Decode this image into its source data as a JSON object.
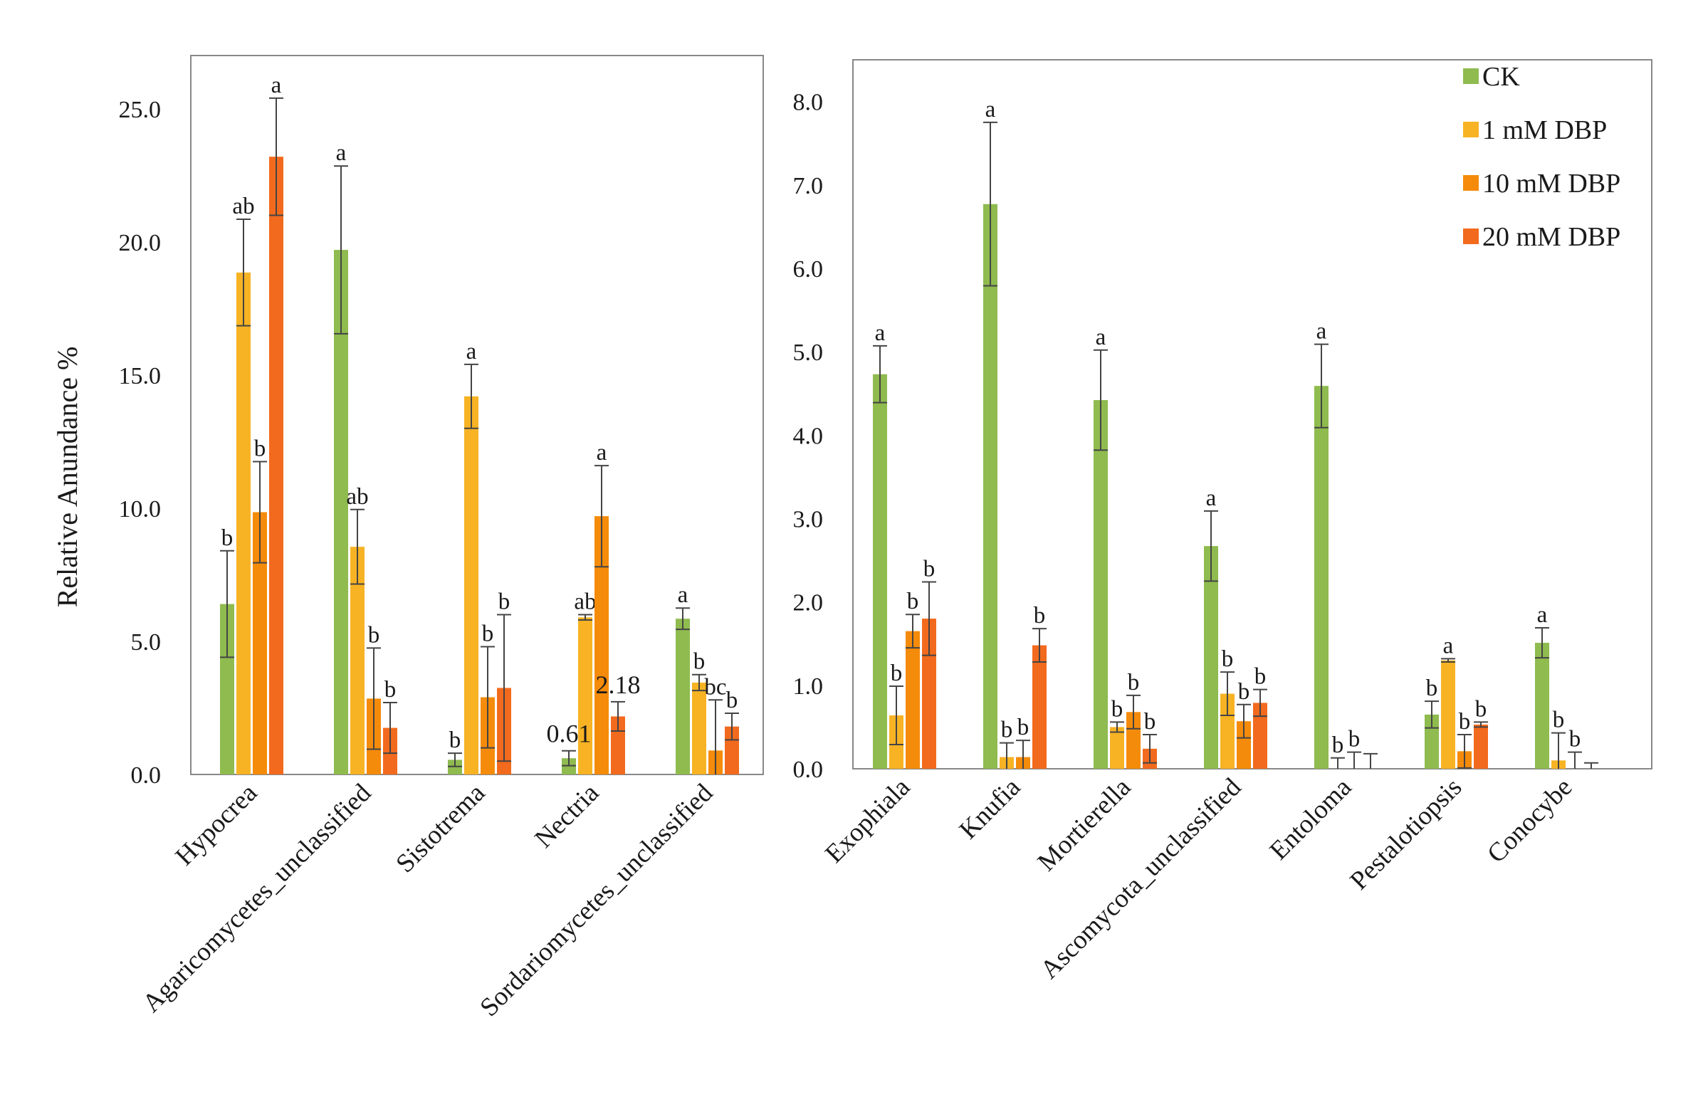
{
  "chart_data": [
    {
      "type": "bar",
      "ylabel": "Relative Anundance %",
      "ylim": [
        0,
        27
      ],
      "yticks": [
        "0.0",
        "5.0",
        "10.0",
        "15.0",
        "20.0",
        "25.0"
      ],
      "categories": [
        "Hypocrea",
        "Agaricomycetes_unclassified",
        "Sistotrema",
        "Nectria",
        "Sordariomycetes_unclassified"
      ],
      "series": [
        {
          "name": "CK",
          "values": [
            6.4,
            19.7,
            0.55,
            0.61,
            5.85
          ],
          "errors": [
            2.0,
            3.15,
            0.25,
            0.28,
            0.4
          ],
          "letters": [
            "b",
            "a",
            "b",
            "",
            "a"
          ]
        },
        {
          "name": "1 mM DBP",
          "values": [
            18.85,
            8.55,
            14.2,
            5.9,
            3.45
          ],
          "errors": [
            2.0,
            1.4,
            1.2,
            0.1,
            0.3
          ],
          "letters": [
            "ab",
            "ab",
            "a",
            "ab",
            "b"
          ]
        },
        {
          "name": "10 mM DBP",
          "values": [
            9.85,
            2.85,
            2.9,
            9.7,
            0.9
          ],
          "errors": [
            1.9,
            1.9,
            1.9,
            1.9,
            1.9
          ],
          "letters": [
            "b",
            "b",
            "b",
            "a",
            "bc"
          ]
        },
        {
          "name": "20 mM DBP",
          "values": [
            23.2,
            1.75,
            3.25,
            2.18,
            1.8
          ],
          "errors": [
            2.2,
            0.95,
            2.75,
            0.55,
            0.5
          ],
          "letters": [
            "a",
            "b",
            "b",
            "",
            "b"
          ]
        }
      ],
      "data_labels": [
        {
          "category": "Nectria",
          "series": "CK",
          "text": "0.61"
        },
        {
          "category": "Nectria",
          "series": "20 mM DBP",
          "text": "2.18"
        }
      ]
    },
    {
      "type": "bar",
      "ylim": [
        0,
        8.5
      ],
      "yticks": [
        "0.0",
        "1.0",
        "2.0",
        "3.0",
        "4.0",
        "5.0",
        "6.0",
        "7.0",
        "8.0"
      ],
      "categories": [
        "Exophiala",
        "Knufia",
        "Mortierella",
        "Ascomycota_unclassified",
        "Entoloma",
        "Pestalotiopsis",
        "Conocybe"
      ],
      "series": [
        {
          "name": "CK",
          "values": [
            4.73,
            6.77,
            4.42,
            2.67,
            4.59,
            0.65,
            1.51
          ],
          "errors": [
            0.34,
            0.98,
            0.6,
            0.42,
            0.5,
            0.16,
            0.18
          ],
          "letters": [
            "a",
            "a",
            "a",
            "a",
            "a",
            "b",
            "a"
          ]
        },
        {
          "name": "1 mM DBP",
          "values": [
            0.64,
            0.14,
            0.5,
            0.9,
            0.0,
            1.3,
            0.1
          ],
          "errors": [
            0.35,
            0.17,
            0.06,
            0.26,
            0.13,
            0.02,
            0.33
          ],
          "letters": [
            "b",
            "b",
            "b",
            "b",
            "b",
            "a",
            "b"
          ]
        },
        {
          "name": "10 mM DBP",
          "values": [
            1.65,
            0.14,
            0.68,
            0.57,
            0.0,
            0.21,
            0.0
          ],
          "errors": [
            0.2,
            0.2,
            0.2,
            0.2,
            0.2,
            0.2,
            0.2
          ],
          "letters": [
            "b",
            "b",
            "b",
            "b",
            "b",
            "b",
            "b"
          ]
        },
        {
          "name": "20 mM DBP",
          "values": [
            1.8,
            1.48,
            0.24,
            0.79,
            0.0,
            0.53,
            0.0
          ],
          "errors": [
            0.44,
            0.2,
            0.17,
            0.16,
            0.18,
            0.03,
            0.07
          ],
          "letters": [
            "b",
            "b",
            "b",
            "b",
            "",
            "b",
            ""
          ]
        }
      ]
    }
  ],
  "legend": {
    "placement": "top-right",
    "items": [
      {
        "label": "CK",
        "color": "#8fbb4f"
      },
      {
        "label": "1 mM DBP",
        "color": "#f7b324"
      },
      {
        "label": "10 mM DBP",
        "color": "#f58b0a"
      },
      {
        "label": "20 mM DBP",
        "color": "#f26a1d"
      }
    ]
  },
  "colors": {
    "series": [
      "#8fbb4f",
      "#f7b324",
      "#f58b0a",
      "#f26a1d"
    ],
    "error_bar": "#444444",
    "axis": "#888888"
  }
}
